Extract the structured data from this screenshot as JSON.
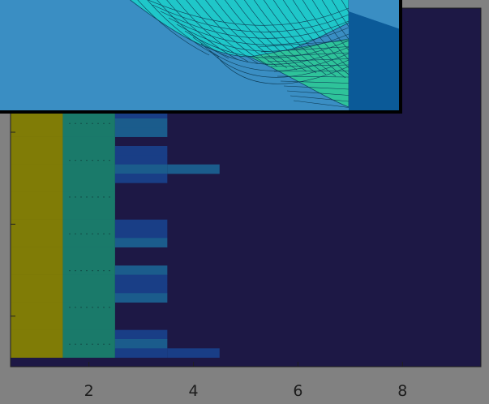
{
  "chart_data": {
    "type": "heatmap",
    "title": "",
    "xlabel": "",
    "ylabel": "",
    "xlim": [
      0.5,
      9.5
    ],
    "x_ticks": [
      2,
      4,
      6,
      8
    ],
    "x_tick_labels": [
      "2",
      "4",
      "6",
      "8"
    ],
    "visible_row_range": [
      7,
      45
    ],
    "colormap": "parula",
    "color_levels": [
      "#1d1845",
      "#193e86",
      "#1b5c8c",
      "#1d6b73",
      "#1a7a6a",
      "#807c06"
    ],
    "columns": [
      {
        "x": 1,
        "values": [
          5,
          5,
          5,
          5,
          5,
          5,
          5,
          5,
          5,
          5,
          5,
          5,
          5,
          5,
          5,
          5,
          5,
          5,
          5,
          5,
          5,
          5,
          5,
          5,
          5,
          5,
          5,
          5,
          5,
          5,
          5,
          5,
          5,
          5,
          5,
          5,
          5,
          5
        ]
      },
      {
        "x": 2,
        "values": [
          4,
          4,
          4,
          4,
          4,
          4,
          4,
          4,
          4,
          3,
          4,
          4,
          4,
          4,
          4,
          4,
          4,
          4,
          4,
          4,
          4,
          4,
          4,
          4,
          4,
          4,
          4,
          4,
          4,
          4,
          4,
          4,
          4,
          4,
          4,
          4,
          4,
          4
        ]
      },
      {
        "x": 3,
        "values": [
          1,
          1,
          0,
          1,
          1,
          0,
          0,
          1,
          0,
          1,
          2,
          1,
          2,
          2,
          0,
          1,
          1,
          2,
          1,
          0,
          0,
          0,
          0,
          1,
          1,
          2,
          0,
          0,
          2,
          1,
          1,
          2,
          0,
          0,
          0,
          1,
          2,
          1
        ]
      },
      {
        "x": 4,
        "values": [
          0,
          0,
          0,
          0,
          0,
          0,
          0,
          0,
          0,
          0,
          2,
          0,
          0,
          0,
          0,
          0,
          0,
          2,
          0,
          0,
          0,
          0,
          0,
          0,
          0,
          0,
          0,
          0,
          0,
          0,
          0,
          0,
          0,
          0,
          0,
          0,
          0,
          1
        ]
      }
    ],
    "background_value": 0,
    "inset_plot": {
      "type": "surface",
      "description_visible": "3D mesh surface",
      "grid": true
    }
  }
}
